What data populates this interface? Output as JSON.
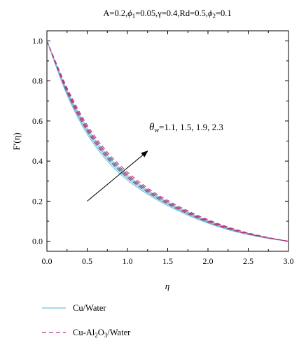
{
  "chart_data": {
    "type": "line",
    "title": "A=0.2,ϕ₁=0.05,γ=0.4,Rd=0.5,ϕ₂=0.1",
    "xlabel": "η",
    "ylabel": "F′(η)",
    "xlim": [
      0,
      3.0
    ],
    "ylim": [
      -0.05,
      1.05
    ],
    "grid": false,
    "x_ticks": [
      "0.0",
      "0.5",
      "1.0",
      "1.5",
      "2.0",
      "2.5",
      "3.0"
    ],
    "y_ticks": [
      "0.0",
      "0.2",
      "0.4",
      "0.6",
      "0.8",
      "1.0"
    ],
    "x": [
      0,
      0.25,
      0.5,
      0.75,
      1.0,
      1.25,
      1.5,
      1.75,
      2.0,
      2.25,
      2.5,
      2.75,
      3.0
    ],
    "series": [
      {
        "group": "Cu/Water",
        "theta_w": 1.1,
        "color": "#6ec3d6",
        "dash": "solid",
        "values": [
          1.0,
          0.73,
          0.535,
          0.4,
          0.305,
          0.235,
          0.178,
          0.13,
          0.09,
          0.058,
          0.033,
          0.014,
          0.0
        ]
      },
      {
        "group": "Cu/Water",
        "theta_w": 1.5,
        "color": "#6ec3d6",
        "dash": "solid",
        "values": [
          1.0,
          0.738,
          0.545,
          0.41,
          0.314,
          0.242,
          0.184,
          0.135,
          0.094,
          0.061,
          0.035,
          0.015,
          0.0
        ]
      },
      {
        "group": "Cu/Water",
        "theta_w": 1.9,
        "color": "#6ec3d6",
        "dash": "solid",
        "values": [
          1.0,
          0.746,
          0.555,
          0.42,
          0.322,
          0.249,
          0.19,
          0.14,
          0.098,
          0.064,
          0.037,
          0.016,
          0.0
        ]
      },
      {
        "group": "Cu/Water",
        "theta_w": 2.3,
        "color": "#6ec3d6",
        "dash": "solid",
        "values": [
          1.0,
          0.754,
          0.565,
          0.43,
          0.33,
          0.256,
          0.196,
          0.145,
          0.102,
          0.067,
          0.039,
          0.017,
          0.0
        ]
      },
      {
        "group": "Cu-Al2O3/Water",
        "theta_w": 1.1,
        "color": "#b8377e",
        "dash": "dashed",
        "values": [
          1.0,
          0.742,
          0.55,
          0.415,
          0.318,
          0.245,
          0.186,
          0.137,
          0.096,
          0.062,
          0.036,
          0.016,
          0.0
        ]
      },
      {
        "group": "Cu-Al2O3/Water",
        "theta_w": 1.5,
        "color": "#b8377e",
        "dash": "dashed",
        "values": [
          1.0,
          0.75,
          0.56,
          0.425,
          0.327,
          0.252,
          0.192,
          0.142,
          0.1,
          0.065,
          0.038,
          0.017,
          0.0
        ]
      },
      {
        "group": "Cu-Al2O3/Water",
        "theta_w": 1.9,
        "color": "#b8377e",
        "dash": "dashed",
        "values": [
          1.0,
          0.758,
          0.57,
          0.435,
          0.336,
          0.259,
          0.198,
          0.147,
          0.104,
          0.068,
          0.04,
          0.018,
          0.0
        ]
      },
      {
        "group": "Cu-Al2O3/Water",
        "theta_w": 2.3,
        "color": "#b8377e",
        "dash": "dashed",
        "values": [
          1.0,
          0.766,
          0.58,
          0.445,
          0.345,
          0.266,
          0.204,
          0.152,
          0.108,
          0.071,
          0.042,
          0.019,
          0.0
        ]
      }
    ],
    "legend": {
      "placement": "bottom-left",
      "entries": [
        {
          "label": "Cu/Water",
          "color": "#6ec3d6",
          "dash": "solid"
        },
        {
          "label": "Cu-Al2O3/Water",
          "color": "#b8377e",
          "dash": "dashed"
        }
      ]
    },
    "annotation": {
      "text_symbol": "θ",
      "text_sub": "w",
      "text_values": "=1.1, 1.5, 1.9, 2.3",
      "arrow_from": [
        0.5,
        0.2
      ],
      "arrow_to": [
        1.25,
        0.45
      ]
    }
  }
}
